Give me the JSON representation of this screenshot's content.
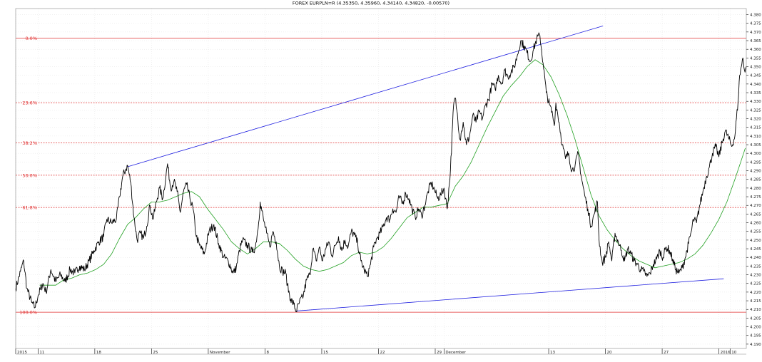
{
  "chart_data": {
    "type": "line",
    "title": "FOREX EURPLN=R (4.35350, 4.35960, 4.34140, 4.34820, -0.00570)",
    "xlabel": "",
    "ylabel": "",
    "ylim": [
      4.1875,
      4.3835
    ],
    "y_ticks": [
      "4.190",
      "4.195",
      "4.200",
      "4.205",
      "4.210",
      "4.215",
      "4.220",
      "4.225",
      "4.230",
      "4.235",
      "4.240",
      "4.245",
      "4.250",
      "4.255",
      "4.260",
      "4.265",
      "4.270",
      "4.275",
      "4.280",
      "4.285",
      "4.290",
      "4.295",
      "4.300",
      "4.305",
      "4.310",
      "4.315",
      "4.320",
      "4.325",
      "4.330",
      "4.335",
      "4.340",
      "4.345",
      "4.350",
      "4.355",
      "4.360",
      "4.365",
      "4.370",
      "4.375",
      "4.380"
    ],
    "x_labels": [
      {
        "t": 0,
        "label": "2015"
      },
      {
        "t": 28,
        "label": "11"
      },
      {
        "t": 99,
        "label": "18"
      },
      {
        "t": 170,
        "label": "25"
      },
      {
        "t": 241,
        "label": "November"
      },
      {
        "t": 312,
        "label": "8"
      },
      {
        "t": 383,
        "label": "15"
      },
      {
        "t": 454,
        "label": "22"
      },
      {
        "t": 525,
        "label": "29"
      },
      {
        "t": 536,
        "label": "December"
      },
      {
        "t": 667,
        "label": "13"
      },
      {
        "t": 738,
        "label": "20"
      },
      {
        "t": 809,
        "label": "27"
      },
      {
        "t": 880,
        "label": "2016"
      },
      {
        "t": 894,
        "label": "10"
      }
    ],
    "grid": true,
    "fibonacci": [
      {
        "label": "0.0%",
        "value": 4.3665
      },
      {
        "label": "23.6%",
        "value": 4.3292
      },
      {
        "label": "38.2%",
        "value": 4.3061
      },
      {
        "label": "50.0%",
        "value": 4.2874
      },
      {
        "label": "61.8%",
        "value": 4.2688
      },
      {
        "label": "100.0%",
        "value": 4.2084
      }
    ],
    "trendlines": [
      {
        "from": [
          140,
          4.2923
        ],
        "to": [
          735,
          4.3735
        ]
      },
      {
        "from": [
          351,
          4.2091
        ],
        "to": [
          886,
          4.2277
        ]
      }
    ],
    "price_anchors": [
      [
        0,
        4.222
      ],
      [
        6,
        4.232
      ],
      [
        10,
        4.238
      ],
      [
        14,
        4.222
      ],
      [
        20,
        4.214
      ],
      [
        24,
        4.211
      ],
      [
        28,
        4.218
      ],
      [
        34,
        4.225
      ],
      [
        38,
        4.22
      ],
      [
        44,
        4.233
      ],
      [
        50,
        4.226
      ],
      [
        56,
        4.23
      ],
      [
        62,
        4.226
      ],
      [
        68,
        4.233
      ],
      [
        74,
        4.231
      ],
      [
        80,
        4.235
      ],
      [
        86,
        4.233
      ],
      [
        92,
        4.238
      ],
      [
        98,
        4.244
      ],
      [
        104,
        4.249
      ],
      [
        110,
        4.252
      ],
      [
        114,
        4.262
      ],
      [
        120,
        4.26
      ],
      [
        126,
        4.262
      ],
      [
        130,
        4.275
      ],
      [
        134,
        4.287
      ],
      [
        138,
        4.291
      ],
      [
        140,
        4.293
      ],
      [
        144,
        4.283
      ],
      [
        148,
        4.263
      ],
      [
        152,
        4.25
      ],
      [
        156,
        4.254
      ],
      [
        160,
        4.251
      ],
      [
        164,
        4.258
      ],
      [
        168,
        4.27
      ],
      [
        172,
        4.262
      ],
      [
        176,
        4.272
      ],
      [
        180,
        4.28
      ],
      [
        184,
        4.274
      ],
      [
        188,
        4.287
      ],
      [
        190,
        4.294
      ],
      [
        194,
        4.28
      ],
      [
        198,
        4.284
      ],
      [
        202,
        4.278
      ],
      [
        206,
        4.266
      ],
      [
        210,
        4.278
      ],
      [
        214,
        4.282
      ],
      [
        218,
        4.274
      ],
      [
        222,
        4.268
      ],
      [
        226,
        4.252
      ],
      [
        230,
        4.247
      ],
      [
        236,
        4.242
      ],
      [
        242,
        4.255
      ],
      [
        248,
        4.259
      ],
      [
        254,
        4.248
      ],
      [
        260,
        4.24
      ],
      [
        266,
        4.238
      ],
      [
        272,
        4.231
      ],
      [
        276,
        4.234
      ],
      [
        280,
        4.244
      ],
      [
        284,
        4.25
      ],
      [
        290,
        4.247
      ],
      [
        296,
        4.243
      ],
      [
        300,
        4.246
      ],
      [
        304,
        4.26
      ],
      [
        306,
        4.272
      ],
      [
        310,
        4.262
      ],
      [
        314,
        4.254
      ],
      [
        318,
        4.246
      ],
      [
        322,
        4.255
      ],
      [
        326,
        4.249
      ],
      [
        330,
        4.235
      ],
      [
        334,
        4.232
      ],
      [
        338,
        4.231
      ],
      [
        340,
        4.224
      ],
      [
        344,
        4.216
      ],
      [
        348,
        4.213
      ],
      [
        351,
        4.209
      ],
      [
        355,
        4.214
      ],
      [
        360,
        4.218
      ],
      [
        364,
        4.227
      ],
      [
        368,
        4.23
      ],
      [
        372,
        4.245
      ],
      [
        376,
        4.238
      ],
      [
        380,
        4.246
      ],
      [
        384,
        4.238
      ],
      [
        388,
        4.245
      ],
      [
        392,
        4.249
      ],
      [
        396,
        4.241
      ],
      [
        400,
        4.247
      ],
      [
        404,
        4.252
      ],
      [
        408,
        4.244
      ],
      [
        412,
        4.25
      ],
      [
        416,
        4.246
      ],
      [
        420,
        4.255
      ],
      [
        424,
        4.253
      ],
      [
        428,
        4.248
      ],
      [
        432,
        4.238
      ],
      [
        436,
        4.233
      ],
      [
        440,
        4.229
      ],
      [
        444,
        4.236
      ],
      [
        448,
        4.246
      ],
      [
        452,
        4.251
      ],
      [
        456,
        4.254
      ],
      [
        460,
        4.258
      ],
      [
        464,
        4.263
      ],
      [
        468,
        4.262
      ],
      [
        472,
        4.268
      ],
      [
        476,
        4.266
      ],
      [
        480,
        4.275
      ],
      [
        484,
        4.271
      ],
      [
        488,
        4.277
      ],
      [
        492,
        4.274
      ],
      [
        496,
        4.268
      ],
      [
        500,
        4.263
      ],
      [
        504,
        4.268
      ],
      [
        508,
        4.264
      ],
      [
        512,
        4.27
      ],
      [
        516,
        4.278
      ],
      [
        520,
        4.283
      ],
      [
        524,
        4.279
      ],
      [
        528,
        4.274
      ],
      [
        532,
        4.276
      ],
      [
        536,
        4.28
      ],
      [
        540,
        4.268
      ],
      [
        544,
        4.29
      ],
      [
        548,
        4.328
      ],
      [
        550,
        4.332
      ],
      [
        552,
        4.325
      ],
      [
        556,
        4.308
      ],
      [
        558,
        4.313
      ],
      [
        560,
        4.318
      ],
      [
        564,
        4.305
      ],
      [
        568,
        4.31
      ],
      [
        572,
        4.322
      ],
      [
        576,
        4.318
      ],
      [
        580,
        4.324
      ],
      [
        584,
        4.32
      ],
      [
        588,
        4.328
      ],
      [
        592,
        4.331
      ],
      [
        596,
        4.34
      ],
      [
        600,
        4.337
      ],
      [
        604,
        4.345
      ],
      [
        608,
        4.34
      ],
      [
        612,
        4.348
      ],
      [
        616,
        4.344
      ],
      [
        620,
        4.347
      ],
      [
        624,
        4.35
      ],
      [
        628,
        4.357
      ],
      [
        632,
        4.365
      ],
      [
        636,
        4.362
      ],
      [
        640,
        4.358
      ],
      [
        644,
        4.353
      ],
      [
        648,
        4.36
      ],
      [
        652,
        4.366
      ],
      [
        656,
        4.368
      ],
      [
        660,
        4.352
      ],
      [
        664,
        4.335
      ],
      [
        668,
        4.328
      ],
      [
        672,
        4.322
      ],
      [
        674,
        4.316
      ],
      [
        676,
        4.329
      ],
      [
        680,
        4.318
      ],
      [
        684,
        4.305
      ],
      [
        688,
        4.297
      ],
      [
        692,
        4.3
      ],
      [
        696,
        4.29
      ],
      [
        700,
        4.293
      ],
      [
        704,
        4.3
      ],
      [
        708,
        4.286
      ],
      [
        712,
        4.276
      ],
      [
        716,
        4.268
      ],
      [
        720,
        4.258
      ],
      [
        724,
        4.265
      ],
      [
        728,
        4.272
      ],
      [
        730,
        4.25
      ],
      [
        734,
        4.237
      ],
      [
        738,
        4.24
      ],
      [
        742,
        4.249
      ],
      [
        746,
        4.238
      ],
      [
        750,
        4.254
      ],
      [
        754,
        4.249
      ],
      [
        758,
        4.244
      ],
      [
        762,
        4.238
      ],
      [
        766,
        4.245
      ],
      [
        770,
        4.242
      ],
      [
        774,
        4.238
      ],
      [
        778,
        4.236
      ],
      [
        782,
        4.233
      ],
      [
        786,
        4.232
      ],
      [
        790,
        4.229
      ],
      [
        794,
        4.231
      ],
      [
        798,
        4.236
      ],
      [
        802,
        4.239
      ],
      [
        806,
        4.244
      ],
      [
        810,
        4.24
      ],
      [
        814,
        4.246
      ],
      [
        818,
        4.244
      ],
      [
        822,
        4.239
      ],
      [
        826,
        4.233
      ],
      [
        830,
        4.231
      ],
      [
        834,
        4.234
      ],
      [
        838,
        4.24
      ],
      [
        842,
        4.248
      ],
      [
        846,
        4.256
      ],
      [
        848,
        4.262
      ],
      [
        852,
        4.26
      ],
      [
        856,
        4.27
      ],
      [
        860,
        4.278
      ],
      [
        864,
        4.286
      ],
      [
        868,
        4.292
      ],
      [
        872,
        4.3
      ],
      [
        876,
        4.304
      ],
      [
        880,
        4.298
      ],
      [
        884,
        4.306
      ],
      [
        888,
        4.313
      ],
      [
        892,
        4.309
      ],
      [
        896,
        4.304
      ],
      [
        900,
        4.31
      ],
      [
        904,
        4.33
      ],
      [
        906,
        4.345
      ],
      [
        908,
        4.35
      ],
      [
        910,
        4.355
      ],
      [
        912,
        4.348
      ],
      [
        914,
        4.35
      ]
    ],
    "moving_average": [
      [
        30,
        4.224
      ],
      [
        40,
        4.224
      ],
      [
        50,
        4.224
      ],
      [
        60,
        4.227
      ],
      [
        70,
        4.228
      ],
      [
        80,
        4.23
      ],
      [
        90,
        4.231
      ],
      [
        100,
        4.233
      ],
      [
        110,
        4.236
      ],
      [
        120,
        4.242
      ],
      [
        130,
        4.251
      ],
      [
        140,
        4.259
      ],
      [
        150,
        4.263
      ],
      [
        160,
        4.268
      ],
      [
        170,
        4.272
      ],
      [
        180,
        4.272
      ],
      [
        190,
        4.273
      ],
      [
        200,
        4.275
      ],
      [
        210,
        4.277
      ],
      [
        220,
        4.278
      ],
      [
        230,
        4.275
      ],
      [
        240,
        4.268
      ],
      [
        250,
        4.262
      ],
      [
        260,
        4.256
      ],
      [
        270,
        4.249
      ],
      [
        280,
        4.245
      ],
      [
        290,
        4.242
      ],
      [
        300,
        4.245
      ],
      [
        310,
        4.249
      ],
      [
        320,
        4.249
      ],
      [
        330,
        4.248
      ],
      [
        340,
        4.244
      ],
      [
        350,
        4.239
      ],
      [
        360,
        4.235
      ],
      [
        370,
        4.233
      ],
      [
        380,
        4.232
      ],
      [
        390,
        4.233
      ],
      [
        400,
        4.235
      ],
      [
        410,
        4.237
      ],
      [
        420,
        4.241
      ],
      [
        430,
        4.243
      ],
      [
        440,
        4.242
      ],
      [
        450,
        4.243
      ],
      [
        460,
        4.246
      ],
      [
        470,
        4.251
      ],
      [
        480,
        4.257
      ],
      [
        490,
        4.263
      ],
      [
        500,
        4.266
      ],
      [
        510,
        4.269
      ],
      [
        520,
        4.269
      ],
      [
        530,
        4.27
      ],
      [
        540,
        4.271
      ],
      [
        550,
        4.281
      ],
      [
        560,
        4.287
      ],
      [
        570,
        4.295
      ],
      [
        580,
        4.305
      ],
      [
        590,
        4.315
      ],
      [
        600,
        4.324
      ],
      [
        610,
        4.333
      ],
      [
        620,
        4.339
      ],
      [
        630,
        4.344
      ],
      [
        640,
        4.35
      ],
      [
        650,
        4.354
      ],
      [
        660,
        4.351
      ],
      [
        670,
        4.344
      ],
      [
        680,
        4.334
      ],
      [
        690,
        4.322
      ],
      [
        700,
        4.308
      ],
      [
        710,
        4.292
      ],
      [
        720,
        4.276
      ],
      [
        730,
        4.264
      ],
      [
        740,
        4.256
      ],
      [
        750,
        4.25
      ],
      [
        760,
        4.245
      ],
      [
        770,
        4.241
      ],
      [
        780,
        4.238
      ],
      [
        790,
        4.236
      ],
      [
        800,
        4.234
      ],
      [
        810,
        4.235
      ],
      [
        820,
        4.236
      ],
      [
        830,
        4.237
      ],
      [
        840,
        4.239
      ],
      [
        850,
        4.242
      ],
      [
        860,
        4.247
      ],
      [
        870,
        4.254
      ],
      [
        880,
        4.262
      ],
      [
        890,
        4.272
      ],
      [
        900,
        4.285
      ],
      [
        908,
        4.296
      ],
      [
        913,
        4.303
      ]
    ]
  }
}
